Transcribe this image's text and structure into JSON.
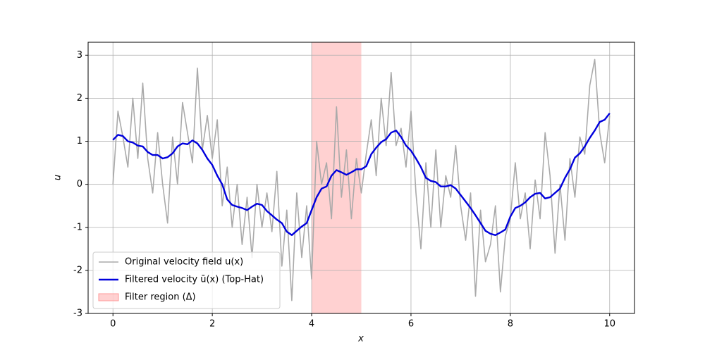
{
  "chart_data": {
    "type": "line",
    "xlabel": "x",
    "ylabel": "u",
    "x": [
      0,
      0.1,
      0.2,
      0.3,
      0.4,
      0.5,
      0.6,
      0.7,
      0.8,
      0.9,
      1,
      1.1,
      1.2,
      1.3,
      1.4,
      1.5,
      1.6,
      1.7,
      1.8,
      1.9,
      2,
      2.1,
      2.2,
      2.3,
      2.4,
      2.5,
      2.6,
      2.7,
      2.8,
      2.9,
      3,
      3.1,
      3.2,
      3.3,
      3.4,
      3.5,
      3.6,
      3.7,
      3.8,
      3.9,
      4,
      4.1,
      4.2,
      4.3,
      4.4,
      4.5,
      4.6,
      4.7,
      4.8,
      4.9,
      5,
      5.1,
      5.2,
      5.3,
      5.4,
      5.5,
      5.6,
      5.7,
      5.8,
      5.9,
      6,
      6.1,
      6.2,
      6.3,
      6.4,
      6.5,
      6.6,
      6.7,
      6.8,
      6.9,
      7,
      7.1,
      7.2,
      7.3,
      7.4,
      7.5,
      7.6,
      7.7,
      7.8,
      7.9,
      8,
      8.1,
      8.2,
      8.3,
      8.4,
      8.5,
      8.6,
      8.7,
      8.8,
      8.9,
      9,
      9.1,
      9.2,
      9.3,
      9.4,
      9.5,
      9.6,
      9.7,
      9.8,
      9.9,
      10
    ],
    "series": [
      {
        "name": "Original velocity field u(x)",
        "color": "#aaaaaa",
        "width": 1.6,
        "values": [
          0,
          1.7,
          1.1,
          0.4,
          2.0,
          0.6,
          2.35,
          0.6,
          -0.2,
          1.2,
          0.0,
          -0.9,
          1.1,
          0.0,
          1.9,
          1.2,
          0.5,
          2.7,
          0.8,
          1.6,
          0.6,
          1.5,
          -0.5,
          0.4,
          -1.0,
          0.0,
          -1.4,
          -0.3,
          -1.7,
          0.0,
          -1.0,
          -0.2,
          -1.1,
          0.3,
          -1.9,
          -0.6,
          -2.7,
          -0.2,
          -1.7,
          -0.5,
          -2.2,
          1.0,
          0.0,
          0.5,
          -0.8,
          1.8,
          -0.3,
          0.8,
          -0.8,
          0.6,
          -0.2,
          0.7,
          1.5,
          0.2,
          2.0,
          0.9,
          2.6,
          0.9,
          1.3,
          0.4,
          1.7,
          -0.2,
          -1.5,
          0.5,
          -1.0,
          0.8,
          -1.0,
          0.2,
          -0.3,
          0.9,
          -0.5,
          -1.3,
          -0.2,
          -2.6,
          -0.6,
          -1.8,
          -1.4,
          -0.5,
          -2.5,
          -1.2,
          -0.8,
          0.5,
          -0.8,
          -0.2,
          -1.5,
          0.1,
          -0.8,
          1.2,
          0.2,
          -1.6,
          0.0,
          -1.3,
          0.6,
          -0.3,
          1.1,
          0.7,
          2.3,
          2.9,
          1.2,
          0.5,
          1.6
        ]
      },
      {
        "name": "Filtered velocity ū(x) (Top-Hat)",
        "color": "#0000dd",
        "width": 2.4,
        "values": [
          1.03,
          1.15,
          1.12,
          1.0,
          0.97,
          0.9,
          0.88,
          0.75,
          0.68,
          0.68,
          0.6,
          0.63,
          0.72,
          0.88,
          0.95,
          0.93,
          1.02,
          0.95,
          0.8,
          0.6,
          0.45,
          0.2,
          0.0,
          -0.35,
          -0.48,
          -0.52,
          -0.55,
          -0.6,
          -0.52,
          -0.45,
          -0.48,
          -0.62,
          -0.72,
          -0.82,
          -0.9,
          -1.1,
          -1.18,
          -1.08,
          -0.98,
          -0.9,
          -0.6,
          -0.3,
          -0.1,
          -0.05,
          0.2,
          0.33,
          0.28,
          0.22,
          0.28,
          0.35,
          0.35,
          0.42,
          0.7,
          0.85,
          0.98,
          1.05,
          1.2,
          1.25,
          1.1,
          0.9,
          0.78,
          0.6,
          0.4,
          0.15,
          0.08,
          0.05,
          -0.05,
          -0.05,
          -0.02,
          -0.1,
          -0.25,
          -0.4,
          -0.55,
          -0.72,
          -0.9,
          -1.08,
          -1.15,
          -1.18,
          -1.12,
          -1.05,
          -0.75,
          -0.55,
          -0.5,
          -0.42,
          -0.3,
          -0.22,
          -0.2,
          -0.33,
          -0.3,
          -0.2,
          -0.1,
          0.15,
          0.35,
          0.62,
          0.72,
          0.88,
          1.08,
          1.25,
          1.45,
          1.5,
          1.65
        ]
      }
    ],
    "span": {
      "name": "Filter region (Δ)",
      "color": "#ff9999",
      "x": [
        4,
        5
      ]
    },
    "xlim": [
      -0.5,
      10.5
    ],
    "ylim": [
      -3,
      3.3
    ],
    "xticks": [
      0,
      2,
      4,
      6,
      8,
      10
    ],
    "yticks": [
      -3,
      -2,
      -1,
      0,
      1,
      2,
      3
    ],
    "grid": true,
    "legend": "lower left"
  }
}
